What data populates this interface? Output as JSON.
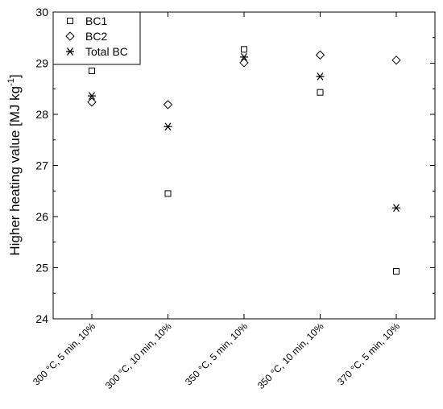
{
  "chart_data": {
    "type": "scatter",
    "categories": [
      "300 °C, 5 min, 10%",
      "300 °C, 10 min, 10%",
      "350 °C, 5 min, 10%",
      "350 °C, 10 min, 10%",
      "370 °C, 5 min, 10%"
    ],
    "series": [
      {
        "name": "BC1",
        "marker": "square",
        "values": [
          28.85,
          26.45,
          29.27,
          28.43,
          24.93
        ]
      },
      {
        "name": "BC2",
        "marker": "diamond",
        "values": [
          28.24,
          28.19,
          29.01,
          29.16,
          29.06
        ]
      },
      {
        "name": "Total BC",
        "marker": "asterisk",
        "values": [
          28.36,
          27.76,
          29.12,
          28.74,
          26.17
        ]
      }
    ],
    "ylabel": "Higher heating value [MJ kg",
    "ylabel_sup": "-1",
    "ylabel_suffix": "]",
    "ylim": [
      24,
      30
    ],
    "yticks": [
      24,
      25,
      26,
      27,
      28,
      29,
      30
    ],
    "legend": "top-left",
    "grid": false
  }
}
